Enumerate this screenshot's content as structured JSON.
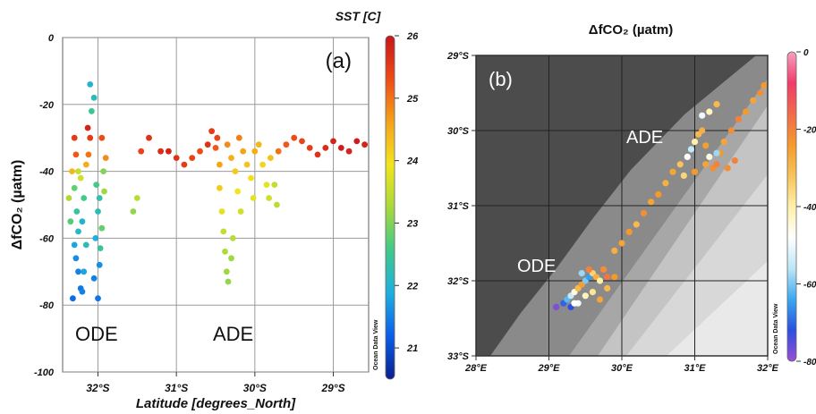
{
  "chart_data": [
    {
      "type": "scatter",
      "panel_label": "(a)",
      "xlabel": "Latitude [degrees_North]",
      "ylabel": "ΔfCO₂ (µatm)",
      "ylim": [
        -100,
        0
      ],
      "xlim": [
        -32.45,
        -28.55
      ],
      "y_ticks": [
        0,
        -20,
        -40,
        -60,
        -80,
        -100
      ],
      "x_ticks": [
        {
          "value": -32,
          "label": "32°S"
        },
        {
          "value": -31,
          "label": "31°S"
        },
        {
          "value": -30,
          "label": "30°S"
        },
        {
          "value": -29,
          "label": "29°S"
        }
      ],
      "grid": true,
      "colorbar": {
        "title": "SST [C]",
        "range": [
          20.5,
          26
        ],
        "ticks": [
          21,
          22,
          23,
          24,
          25,
          26
        ],
        "colors": [
          "#0a1f8f",
          "#0a5ee8",
          "#1faee0",
          "#3fc98a",
          "#a8d93a",
          "#f2e51e",
          "#f5a21a",
          "#ee4a17",
          "#c8141b"
        ],
        "watermark": "Ocean Data View"
      },
      "annotations": [
        "ODE",
        "ADE"
      ],
      "series": [
        {
          "values": [
            [
              -32.3,
              -30,
              25.5
            ],
            [
              -32.28,
              -35,
              25.2
            ],
            [
              -32.25,
              -40,
              23.5
            ],
            [
              -32.3,
              -45,
              22.8
            ],
            [
              -32.27,
              -52,
              22.4
            ],
            [
              -32.25,
              -58,
              22.1
            ],
            [
              -32.3,
              -62,
              21.8
            ],
            [
              -32.28,
              -66,
              21.6
            ],
            [
              -32.25,
              -70,
              21.5
            ],
            [
              -32.22,
              -75,
              21.4
            ],
            [
              -32.32,
              -78,
              21.3
            ],
            [
              -32.2,
              -55,
              22.0
            ],
            [
              -32.18,
              -48,
              22.6
            ],
            [
              -32.22,
              -42,
              23.6
            ],
            [
              -32.15,
              -38,
              24.5
            ],
            [
              -32.12,
              -35,
              25.0
            ],
            [
              -32.1,
              -30,
              25.5
            ],
            [
              -32.13,
              -27,
              25.8
            ],
            [
              -32.08,
              -22,
              22.5
            ],
            [
              -32.05,
              -18,
              22.2
            ],
            [
              -32.1,
              -14,
              22.0
            ],
            [
              -32.02,
              -44,
              22.6
            ],
            [
              -32.0,
              -52,
              22.2
            ],
            [
              -32.03,
              -60,
              21.9
            ],
            [
              -31.98,
              -68,
              21.6
            ],
            [
              -32.05,
              -72,
              21.5
            ],
            [
              -32.0,
              -78,
              21.4
            ],
            [
              -31.97,
              -63,
              22.4
            ],
            [
              -31.95,
              -57,
              22.8
            ],
            [
              -31.92,
              -46,
              23.2
            ],
            [
              -31.9,
              -36,
              24.8
            ],
            [
              -31.95,
              -30,
              25.3
            ],
            [
              -31.93,
              -40,
              23.0
            ],
            [
              -31.98,
              -48,
              22.3
            ],
            [
              -32.15,
              -62,
              22.2
            ],
            [
              -32.18,
              -70,
              21.8
            ],
            [
              -32.2,
              -76,
              21.5
            ],
            [
              -32.35,
              -55,
              22.7
            ],
            [
              -32.37,
              -48,
              23.3
            ],
            [
              -32.33,
              -40,
              24.4
            ],
            [
              -31.55,
              -52,
              23.1
            ],
            [
              -31.5,
              -48,
              23.4
            ],
            [
              -31.45,
              -34,
              25.4
            ],
            [
              -31.35,
              -30,
              25.6
            ],
            [
              -31.2,
              -34,
              25.7
            ],
            [
              -31.1,
              -34,
              25.8
            ],
            [
              -31.0,
              -36,
              25.6
            ],
            [
              -30.9,
              -38,
              25.5
            ],
            [
              -30.8,
              -36,
              25.4
            ],
            [
              -30.7,
              -34,
              25.3
            ],
            [
              -30.6,
              -32,
              25.6
            ],
            [
              -30.55,
              -28,
              25.5
            ],
            [
              -30.5,
              -33,
              25.2
            ],
            [
              -30.45,
              -38,
              24.6
            ],
            [
              -30.45,
              -45,
              24.2
            ],
            [
              -30.42,
              -52,
              23.8
            ],
            [
              -30.4,
              -58,
              23.5
            ],
            [
              -30.38,
              -64,
              23.3
            ],
            [
              -30.36,
              -70,
              23.2
            ],
            [
              -30.34,
              -73,
              23.1
            ],
            [
              -30.48,
              -30,
              25.4
            ],
            [
              -30.35,
              -32,
              24.8
            ],
            [
              -30.3,
              -36,
              24.5
            ],
            [
              -30.25,
              -40,
              24.2
            ],
            [
              -30.22,
              -46,
              23.9
            ],
            [
              -30.18,
              -52,
              23.6
            ],
            [
              -30.28,
              -60,
              23.4
            ],
            [
              -30.3,
              -66,
              23.2
            ],
            [
              -30.2,
              -30,
              24.9
            ],
            [
              -30.15,
              -34,
              24.6
            ],
            [
              -30.1,
              -38,
              24.3
            ],
            [
              -30.05,
              -42,
              24.0
            ],
            [
              -30.02,
              -48,
              23.8
            ],
            [
              -30.0,
              -34,
              24.5
            ],
            [
              -29.95,
              -32,
              24.4
            ],
            [
              -29.9,
              -38,
              24.1
            ],
            [
              -29.85,
              -44,
              23.8
            ],
            [
              -29.82,
              -48,
              23.6
            ],
            [
              -29.8,
              -36,
              24.3
            ],
            [
              -29.75,
              -44,
              23.5
            ],
            [
              -29.72,
              -50,
              23.4
            ],
            [
              -29.7,
              -34,
              25.0
            ],
            [
              -29.6,
              -32,
              25.2
            ],
            [
              -29.5,
              -30,
              25.3
            ],
            [
              -29.4,
              -31,
              25.4
            ],
            [
              -29.3,
              -33,
              25.5
            ],
            [
              -29.2,
              -35,
              25.6
            ],
            [
              -29.1,
              -33,
              25.7
            ],
            [
              -29.0,
              -31,
              25.8
            ],
            [
              -28.9,
              -33,
              25.9
            ],
            [
              -28.8,
              -34,
              25.8
            ],
            [
              -28.7,
              -31,
              25.9
            ],
            [
              -28.6,
              -32,
              25.8
            ]
          ]
        }
      ]
    },
    {
      "type": "scatter",
      "panel_label": "(b)",
      "title": "ΔfCO₂ (µatm)",
      "xlim": [
        28,
        32
      ],
      "ylim": [
        -33,
        -29
      ],
      "x_ticks": [
        {
          "value": 28,
          "label": "28°E"
        },
        {
          "value": 29,
          "label": "29°E"
        },
        {
          "value": 30,
          "label": "30°E"
        },
        {
          "value": 31,
          "label": "31°E"
        },
        {
          "value": 32,
          "label": "32°E"
        }
      ],
      "y_ticks": [
        {
          "value": -29,
          "label": "29°S"
        },
        {
          "value": -30,
          "label": "30°S"
        },
        {
          "value": -31,
          "label": "31°S"
        },
        {
          "value": -32,
          "label": "32°S"
        },
        {
          "value": -33,
          "label": "33°S"
        }
      ],
      "grid": true,
      "colorbar": {
        "range": [
          -80,
          0
        ],
        "ticks": [
          0,
          -20,
          -40,
          -60,
          -80
        ],
        "colors": [
          "#9b4fd6",
          "#2b4fe0",
          "#3aa8f0",
          "#bde6f7",
          "#ffffff",
          "#fff0a8",
          "#f7c35a",
          "#f59a2a",
          "#f26a4a",
          "#f23a6a",
          "#f7a0c0"
        ],
        "watermark": "Ocean Data View"
      },
      "annotations": [
        "ADE",
        "ODE"
      ],
      "series": [
        {
          "values": [
            [
              29.1,
              -32.35,
              -78
            ],
            [
              29.2,
              -32.3,
              -70
            ],
            [
              29.25,
              -32.25,
              -62
            ],
            [
              29.3,
              -32.2,
              -55
            ],
            [
              29.35,
              -32.15,
              -45
            ],
            [
              29.4,
              -32.1,
              -30
            ],
            [
              29.45,
              -32.05,
              -25
            ],
            [
              29.5,
              -32.0,
              -60
            ],
            [
              29.55,
              -31.95,
              -65
            ],
            [
              29.6,
              -31.9,
              -35
            ],
            [
              29.65,
              -31.95,
              -28
            ],
            [
              29.7,
              -32.0,
              -40
            ],
            [
              29.75,
              -31.85,
              -22
            ],
            [
              29.8,
              -31.95,
              -18
            ],
            [
              29.9,
              -31.95,
              -24
            ],
            [
              29.3,
              -32.35,
              -72
            ],
            [
              29.4,
              -32.3,
              -50
            ],
            [
              29.5,
              -32.2,
              -42
            ],
            [
              29.6,
              -32.15,
              -38
            ],
            [
              29.7,
              -32.25,
              -26
            ],
            [
              29.8,
              -32.1,
              -30
            ],
            [
              29.45,
              -31.9,
              -58
            ],
            [
              29.55,
              -31.85,
              -20
            ],
            [
              29.35,
              -32.3,
              -48
            ],
            [
              29.9,
              -31.6,
              -28
            ],
            [
              30.0,
              -31.5,
              -26
            ],
            [
              30.1,
              -31.35,
              -24
            ],
            [
              30.2,
              -31.25,
              -30
            ],
            [
              30.3,
              -31.1,
              -22
            ],
            [
              30.4,
              -30.95,
              -26
            ],
            [
              30.5,
              -30.85,
              -24
            ],
            [
              30.6,
              -30.7,
              -28
            ],
            [
              30.7,
              -30.55,
              -26
            ],
            [
              30.8,
              -30.45,
              -32
            ],
            [
              30.9,
              -30.35,
              -48
            ],
            [
              30.95,
              -30.25,
              -55
            ],
            [
              31.0,
              -30.15,
              -40
            ],
            [
              31.05,
              -30.05,
              -30
            ],
            [
              31.1,
              -30.0,
              -28
            ],
            [
              31.15,
              -30.2,
              -25
            ],
            [
              31.2,
              -30.35,
              -45
            ],
            [
              31.25,
              -30.5,
              -22
            ],
            [
              31.3,
              -30.45,
              -20
            ],
            [
              31.35,
              -30.3,
              -24
            ],
            [
              31.4,
              -30.15,
              -26
            ],
            [
              31.5,
              -30.0,
              -22
            ],
            [
              31.6,
              -29.85,
              -20
            ],
            [
              31.7,
              -29.75,
              -24
            ],
            [
              31.8,
              -29.6,
              -26
            ],
            [
              31.9,
              -29.5,
              -22
            ],
            [
              31.95,
              -29.4,
              -24
            ],
            [
              31.1,
              -29.8,
              -50
            ],
            [
              31.2,
              -29.75,
              -42
            ],
            [
              31.3,
              -29.65,
              -30
            ],
            [
              30.85,
              -30.6,
              -35
            ],
            [
              31.0,
              -30.55,
              -24
            ],
            [
              31.15,
              -30.45,
              -26
            ],
            [
              31.3,
              -30.3,
              -58
            ],
            [
              31.45,
              -30.5,
              -22
            ],
            [
              31.55,
              -30.4,
              -20
            ]
          ]
        }
      ]
    }
  ]
}
